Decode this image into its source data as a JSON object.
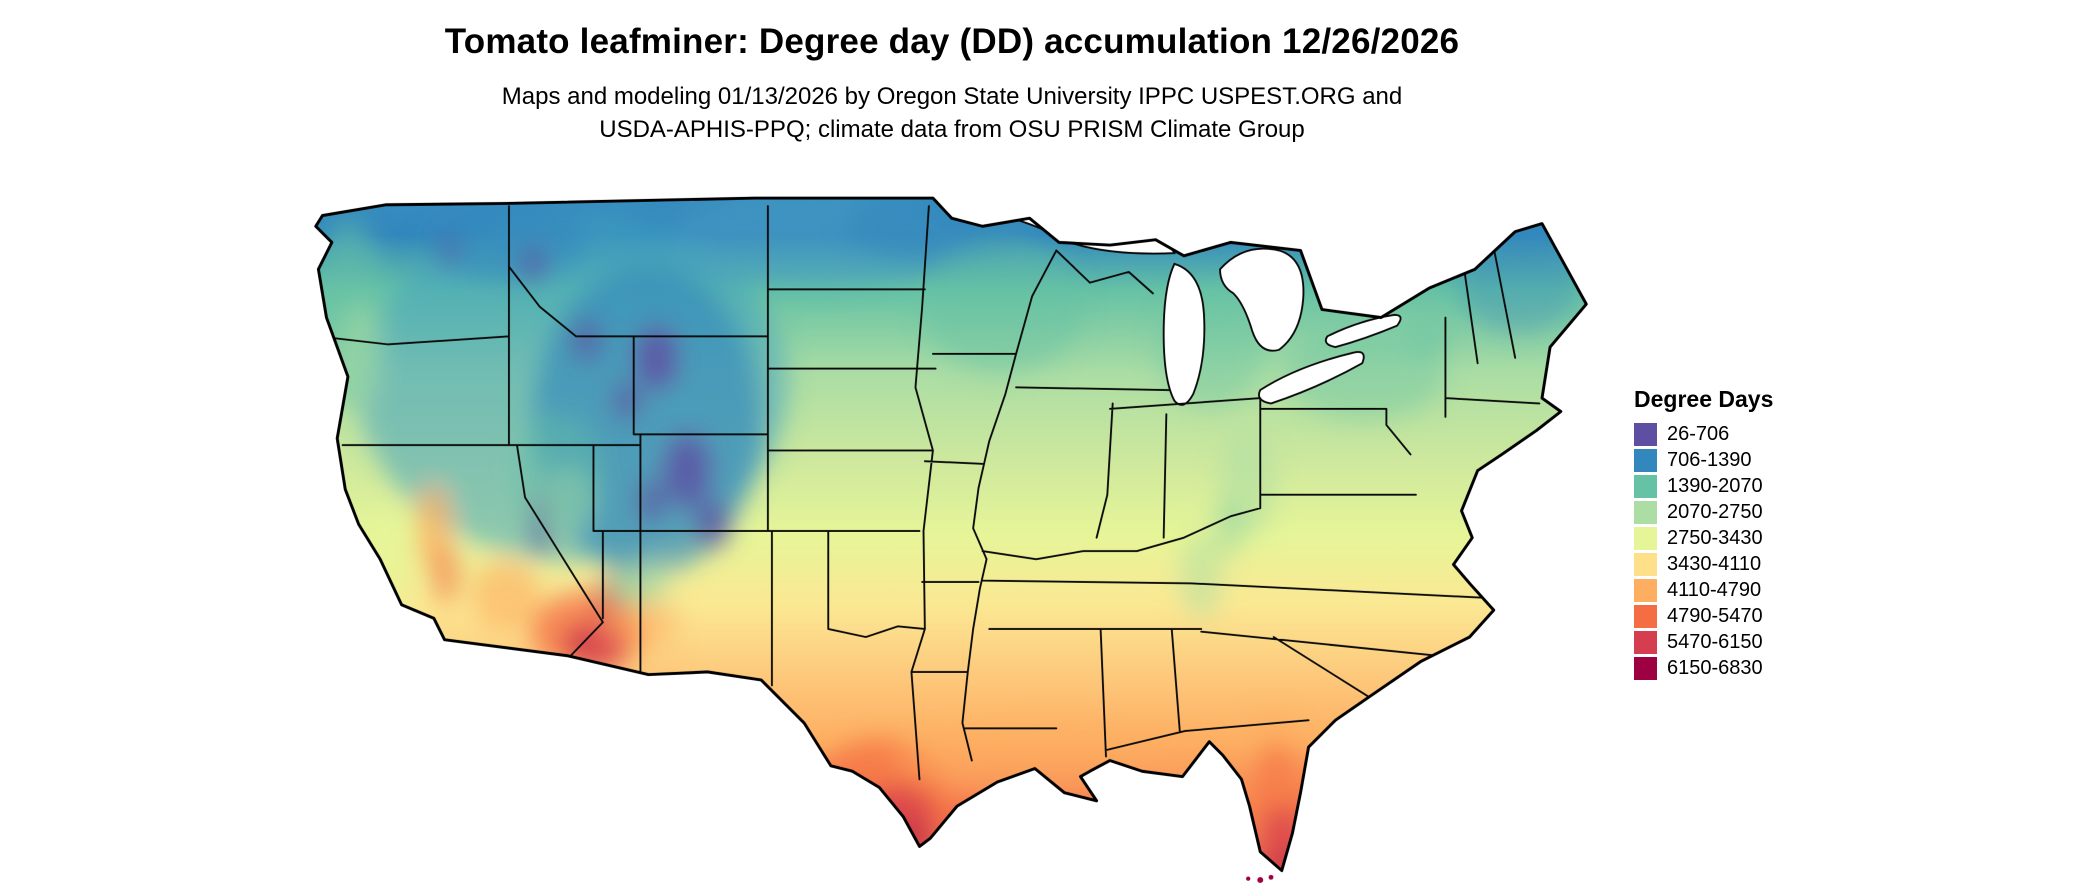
{
  "header": {
    "title": "Tomato leafminer: Degree day (DD) accumulation 12/26/2026",
    "subtitle_line1": "Maps and modeling 01/13/2026 by Oregon State University IPPC USPEST.ORG and",
    "subtitle_line2": "USDA-APHIS-PPQ; climate data from OSU PRISM Climate Group"
  },
  "legend": {
    "title": "Degree Days",
    "items": [
      {
        "label": "26-706",
        "color": "#5e4fa2"
      },
      {
        "label": "706-1390",
        "color": "#3288bd"
      },
      {
        "label": "1390-2070",
        "color": "#66c2a5"
      },
      {
        "label": "2070-2750",
        "color": "#abdda4"
      },
      {
        "label": "2750-3430",
        "color": "#e6f598"
      },
      {
        "label": "3430-4110",
        "color": "#fee08b"
      },
      {
        "label": "4110-4790",
        "color": "#fdae61"
      },
      {
        "label": "4790-5470",
        "color": "#f46d43"
      },
      {
        "label": "5470-6150",
        "color": "#d53e4f"
      },
      {
        "label": "6150-6830",
        "color": "#9e0142"
      }
    ]
  },
  "chart_data": {
    "type": "heatmap",
    "subtype": "degree-day-accumulation-choropleth-map",
    "region": "Contiguous United States",
    "title": "Tomato leafminer: Degree day (DD) accumulation 12/26/2026",
    "subtitle": "Maps and modeling 01/13/2026 by Oregon State University IPPC USPEST.ORG and USDA-APHIS-PPQ; climate data from OSU PRISM Climate Group",
    "legend_title": "Degree Days",
    "legend_position": "right",
    "value_units": "degree days",
    "value_range": [
      26,
      6830
    ],
    "classes": [
      {
        "min": 26,
        "max": 706,
        "color": "#5e4fa2"
      },
      {
        "min": 706,
        "max": 1390,
        "color": "#3288bd"
      },
      {
        "min": 1390,
        "max": 2070,
        "color": "#66c2a5"
      },
      {
        "min": 2070,
        "max": 2750,
        "color": "#abdda4"
      },
      {
        "min": 2750,
        "max": 3430,
        "color": "#e6f598"
      },
      {
        "min": 3430,
        "max": 4110,
        "color": "#fee08b"
      },
      {
        "min": 4110,
        "max": 4790,
        "color": "#fdae61"
      },
      {
        "min": 4790,
        "max": 5470,
        "color": "#f46d43"
      },
      {
        "min": 5470,
        "max": 6150,
        "color": "#d53e4f"
      },
      {
        "min": 6150,
        "max": 6830,
        "color": "#9e0142"
      }
    ],
    "spatial_pattern": "Lowest accumulations (purple/blue) across the northern Rockies, Cascades, Sierra Nevada and northern tier; greens across the Midwest and Northeast; yellows through the central plains and mid-South; oranges along the Gulf Coast plain and California valleys; highest accumulations (red to dark red) in the Sonoran Desert of Arizona/SE California, south Texas, and peninsular south Florida."
  }
}
